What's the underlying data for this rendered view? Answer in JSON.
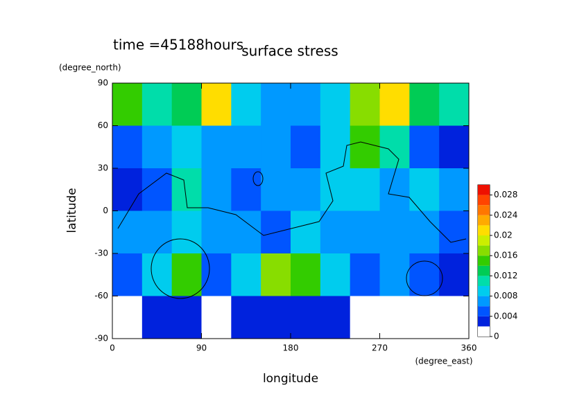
{
  "chart_data": {
    "type": "contour",
    "title": "surface stress",
    "subtitle": "time =45188hours",
    "x_label": "longitude",
    "x_unit": "(degree_east)",
    "y_label": "latitude",
    "y_unit": "(degree_north)",
    "xlim": [
      0,
      360
    ],
    "xticks": [
      0,
      90,
      180,
      270,
      360
    ],
    "ylim": [
      -90,
      90
    ],
    "yticks": [
      -90,
      -60,
      -30,
      0,
      30,
      60,
      90
    ],
    "x": [
      15,
      45,
      75,
      105,
      135,
      165,
      195,
      225,
      255,
      285,
      315,
      345
    ],
    "y": [
      75,
      45,
      15,
      -15,
      -45,
      -75
    ],
    "z": [
      [
        0.014,
        0.01,
        0.012,
        0.02,
        0.008,
        0.006,
        0.006,
        0.008,
        0.016,
        0.02,
        0.012,
        0.01
      ],
      [
        0.004,
        0.006,
        0.008,
        0.006,
        0.006,
        0.006,
        0.004,
        0.008,
        0.014,
        0.01,
        0.004,
        0.002
      ],
      [
        0.002,
        0.004,
        0.01,
        0.006,
        0.004,
        0.006,
        0.006,
        0.008,
        0.008,
        0.006,
        0.008,
        0.006
      ],
      [
        0.006,
        0.006,
        0.008,
        0.006,
        0.006,
        0.004,
        0.008,
        0.006,
        0.006,
        0.006,
        0.006,
        0.004
      ],
      [
        0.004,
        0.008,
        0.014,
        0.004,
        0.008,
        0.016,
        0.014,
        0.008,
        0.004,
        0.006,
        0.004,
        0.002
      ],
      [
        0,
        0.002,
        0.002,
        0,
        0.002,
        0.002,
        0.002,
        0.002,
        0,
        0,
        0,
        0
      ]
    ],
    "clim": [
      0,
      0.03
    ],
    "cticks": [
      0,
      0.004,
      0.008,
      0.012,
      0.016,
      0.02,
      0.024,
      0.028
    ],
    "levels": [
      0,
      0.002,
      0.004,
      0.006,
      0.008,
      0.01,
      0.012,
      0.014,
      0.016,
      0.018,
      0.02,
      0.022,
      0.024,
      0.026,
      0.028,
      0.03
    ],
    "colors": [
      "#ffffff",
      "#0022dd",
      "#0055ff",
      "#0099ff",
      "#00ccee",
      "#00ddaa",
      "#00cc55",
      "#33cc00",
      "#88dd00",
      "#ccee00",
      "#ffdd00",
      "#ffaa00",
      "#ff7700",
      "#ff4400",
      "#ee1100"
    ]
  }
}
